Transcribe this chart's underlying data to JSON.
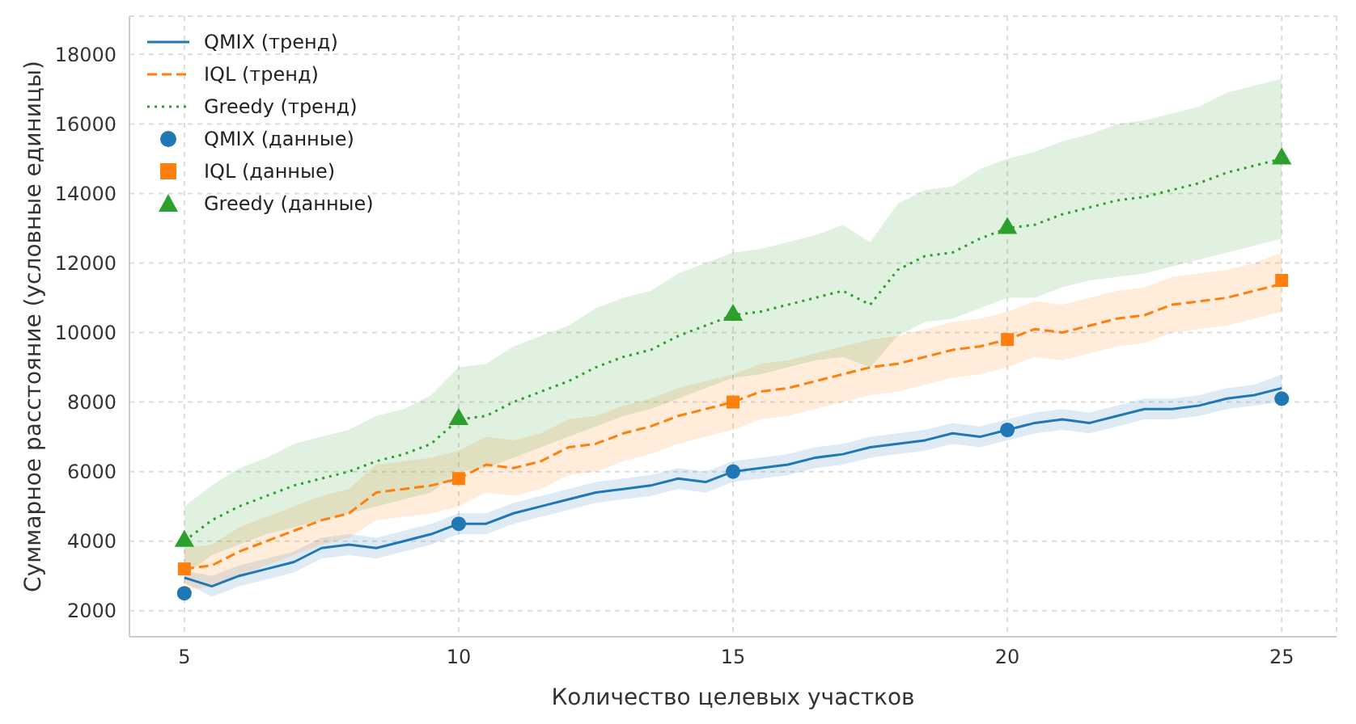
{
  "chart_data": {
    "type": "line",
    "xlabel": "Количество целевых участков",
    "ylabel": "Суммарное расстояние (условные единицы)",
    "xlim": [
      4,
      26
    ],
    "xticks": [
      5,
      10,
      15,
      20,
      25
    ],
    "ylim": [
      1250,
      19100
    ],
    "yticks": [
      2000,
      4000,
      6000,
      8000,
      10000,
      12000,
      14000,
      16000,
      18000
    ],
    "grid": true,
    "legend": "top left",
    "x": [
      5,
      5.5,
      6,
      6.5,
      7,
      7.5,
      8,
      8.5,
      9,
      9.5,
      10,
      10.5,
      11,
      11.5,
      12,
      12.5,
      13,
      13.5,
      14,
      14.5,
      15,
      15.5,
      16,
      16.5,
      17,
      17.5,
      18,
      18.5,
      19,
      19.5,
      20,
      20.5,
      21,
      21.5,
      22,
      22.5,
      23,
      23.5,
      24,
      24.5,
      25
    ],
    "series": [
      {
        "name": "QMIX (тренд)",
        "color": "#1f77b4",
        "line_style": "solid",
        "values": [
          2950,
          2700,
          3000,
          3200,
          3400,
          3800,
          3900,
          3800,
          4000,
          4200,
          4500,
          4500,
          4800,
          5000,
          5200,
          5400,
          5500,
          5600,
          5800,
          5700,
          6000,
          6100,
          6200,
          6400,
          6500,
          6700,
          6800,
          6900,
          7100,
          7000,
          7200,
          7400,
          7500,
          7400,
          7600,
          7800,
          7800,
          7900,
          8100,
          8200,
          8400
        ],
        "lower": [
          2800,
          2400,
          2700,
          2900,
          3100,
          3500,
          3600,
          3500,
          3700,
          3900,
          4200,
          4200,
          4500,
          4700,
          4900,
          5100,
          5200,
          5300,
          5500,
          5400,
          5700,
          5800,
          5900,
          6100,
          6200,
          6400,
          6500,
          6600,
          6800,
          6700,
          6900,
          7100,
          7200,
          7100,
          7300,
          7500,
          7500,
          7600,
          7800,
          7900,
          8000
        ],
        "upper": [
          3150,
          3000,
          3300,
          3500,
          3700,
          4100,
          4200,
          4100,
          4300,
          4500,
          4800,
          4800,
          5100,
          5300,
          5500,
          5700,
          5800,
          5900,
          6100,
          6000,
          6300,
          6400,
          6500,
          6700,
          6800,
          7000,
          7100,
          7200,
          7400,
          7300,
          7500,
          7700,
          7800,
          7700,
          7900,
          8100,
          8100,
          8200,
          8400,
          8500,
          8800
        ]
      },
      {
        "name": "IQL (тренд)",
        "color": "#ff7f0e",
        "line_style": "dashed",
        "values": [
          3200,
          3300,
          3700,
          4000,
          4300,
          4600,
          4800,
          5400,
          5500,
          5600,
          5800,
          6200,
          6100,
          6300,
          6700,
          6800,
          7100,
          7300,
          7600,
          7800,
          8000,
          8300,
          8400,
          8600,
          8800,
          9000,
          9100,
          9300,
          9500,
          9600,
          9800,
          10100,
          10000,
          10200,
          10400,
          10500,
          10800,
          10900,
          11000,
          11200,
          11400
        ],
        "lower": [
          2600,
          2700,
          3000,
          3300,
          3600,
          3900,
          4100,
          4600,
          4700,
          4800,
          5000,
          5400,
          5300,
          5500,
          5900,
          6000,
          6300,
          6500,
          6800,
          7000,
          7200,
          7500,
          7600,
          7800,
          8000,
          8200,
          8300,
          8500,
          8700,
          8800,
          9000,
          9300,
          9200,
          9400,
          9600,
          9700,
          10000,
          10100,
          10200,
          10400,
          10600
        ],
        "upper": [
          3800,
          3900,
          4400,
          4700,
          5000,
          5300,
          5500,
          6200,
          6300,
          6400,
          6600,
          7000,
          6900,
          7100,
          7500,
          7600,
          7900,
          8100,
          8400,
          8600,
          8800,
          9100,
          9200,
          9400,
          9600,
          9800,
          9900,
          10100,
          10300,
          10400,
          10600,
          10900,
          10800,
          11000,
          11200,
          11300,
          11600,
          11700,
          11800,
          12000,
          12300
        ]
      },
      {
        "name": "Greedy (тренд)",
        "color": "#2ca02c",
        "line_style": "dotted",
        "values": [
          4000,
          4600,
          5000,
          5300,
          5600,
          5800,
          6000,
          6300,
          6500,
          6800,
          7500,
          7600,
          8000,
          8300,
          8600,
          9000,
          9300,
          9500,
          9900,
          10200,
          10500,
          10600,
          10800,
          11000,
          11200,
          10800,
          11800,
          12200,
          12300,
          12700,
          13000,
          13100,
          13400,
          13600,
          13800,
          13900,
          14100,
          14300,
          14600,
          14800,
          15000
        ],
        "lower": [
          3000,
          3600,
          3900,
          4200,
          4400,
          4600,
          4800,
          5000,
          5200,
          5400,
          6000,
          6100,
          6400,
          6700,
          7000,
          7300,
          7600,
          7800,
          8100,
          8400,
          8700,
          8800,
          9000,
          9200,
          9300,
          9000,
          9900,
          10300,
          10400,
          10700,
          11000,
          11000,
          11300,
          11500,
          11600,
          11700,
          11900,
          12100,
          12300,
          12500,
          12700
        ],
        "upper": [
          5000,
          5600,
          6100,
          6400,
          6800,
          7000,
          7200,
          7600,
          7800,
          8200,
          9000,
          9100,
          9600,
          9900,
          10200,
          10700,
          11000,
          11200,
          11700,
          12000,
          12300,
          12400,
          12600,
          12800,
          13100,
          12600,
          13700,
          14100,
          14200,
          14700,
          15000,
          15200,
          15500,
          15700,
          16000,
          16100,
          16300,
          16500,
          16900,
          17100,
          17300
        ]
      },
      {
        "name": "QMIX (данные)",
        "type": "scatter",
        "marker": "circle",
        "color": "#1f77b4",
        "x": [
          5,
          10,
          15,
          20,
          25
        ],
        "values": [
          2500,
          4500,
          6000,
          7200,
          8100
        ]
      },
      {
        "name": "IQL (данные)",
        "type": "scatter",
        "marker": "square",
        "color": "#ff7f0e",
        "x": [
          5,
          10,
          15,
          20,
          25
        ],
        "values": [
          3200,
          5800,
          8000,
          9800,
          11500
        ]
      },
      {
        "name": "Greedy (данные)",
        "type": "scatter",
        "marker": "triangle",
        "color": "#2ca02c",
        "x": [
          5,
          10,
          15,
          20,
          25
        ],
        "values": [
          4000,
          7500,
          10500,
          13000,
          15000
        ]
      }
    ]
  }
}
